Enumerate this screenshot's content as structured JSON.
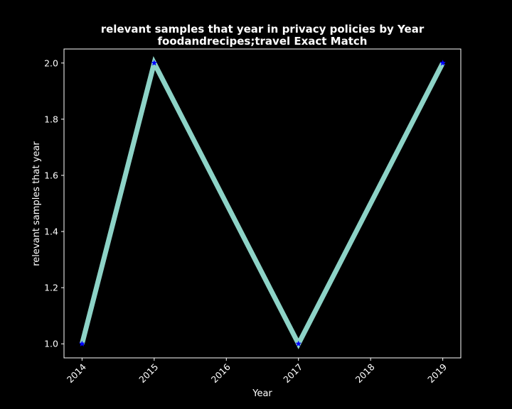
{
  "chart_data": {
    "type": "line",
    "title": "relevant samples that year in privacy policies by Year",
    "subtitle": "foodandrecipes;travel Exact Match",
    "xlabel": "Year",
    "ylabel": "relevant samples that year",
    "x_ticks": [
      "2014",
      "2015",
      "2016",
      "2017",
      "2018",
      "2019"
    ],
    "y_ticks": [
      "1.0",
      "1.2",
      "1.4",
      "1.6",
      "1.8",
      "2.0"
    ],
    "xlim": [
      2013.75,
      2019.25
    ],
    "ylim": [
      0.95,
      2.05
    ],
    "grid": false,
    "series": [
      {
        "x": [
          2014,
          2015,
          2017,
          2019
        ],
        "y": [
          1,
          2,
          1,
          2
        ],
        "line_color": "#8dd3c7",
        "marker_color": "#0000ff",
        "marker": "star"
      }
    ]
  }
}
